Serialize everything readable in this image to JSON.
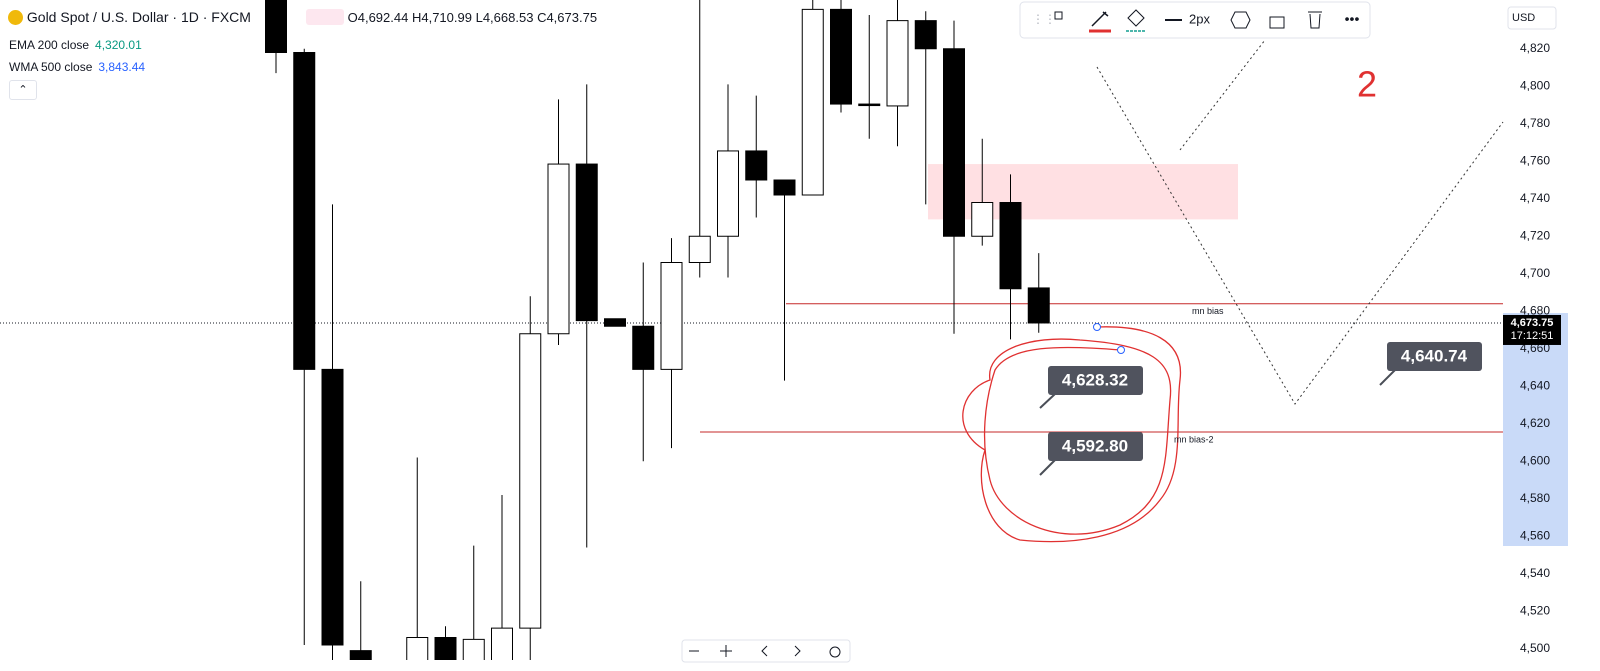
{
  "chart_data": {
    "type": "candlestick",
    "symbol": "Gold Spot / U.S. Dollar · 1D · FXCM",
    "ohlc_labels": [
      "O4,692.44",
      "H4,710.99",
      "L4,668.53",
      "C4,673.75"
    ],
    "indicators": [
      {
        "name": "EMA 200 close",
        "value": "4,320.01",
        "color": "#089981"
      },
      {
        "name": "WMA 500 close",
        "value": "3,843.44",
        "color": "#2962ff"
      }
    ],
    "currency": "USD",
    "line_width_label": "2px",
    "note": "2",
    "categories": [
      null,
      null,
      null,
      null,
      null,
      null,
      null,
      null,
      null,
      null,
      null,
      null,
      null,
      null,
      null,
      null,
      null,
      null,
      null,
      null,
      null,
      null,
      null,
      null,
      null,
      null,
      null,
      null
    ],
    "open": [
      4850,
      4818,
      4649,
      4499,
      null,
      4488,
      4506,
      4490,
      4490,
      4511,
      4668,
      4758.5,
      4676,
      4672,
      4649,
      4706,
      4720,
      4765.5,
      4750,
      4742,
      4841,
      4790.5,
      4789.5,
      4835,
      4820,
      4720,
      4738,
      4692.44
    ],
    "high": [
      4860,
      4820,
      4737,
      4536,
      null,
      4602,
      4512,
      4555,
      4582,
      4688,
      4793,
      4801,
      4676,
      4706,
      4719,
      4860,
      4801,
      4795,
      4750,
      4850,
      4850,
      4838,
      4850,
      4840,
      4835,
      4772,
      4753,
      4710.99
    ],
    "low": [
      4807,
      4502,
      4488,
      4480,
      null,
      4480,
      4480,
      4480,
      4480,
      4480,
      4662,
      4554,
      4672,
      4600,
      4607,
      4698,
      4698,
      4730,
      4643,
      4742,
      4786,
      4772,
      4768,
      4737,
      4668,
      4715,
      4665,
      4668.53
    ],
    "close": [
      4818,
      4649,
      4502,
      4488,
      null,
      4506,
      4490,
      4505,
      4511,
      4668,
      4758.5,
      4675,
      4672,
      4649,
      4706,
      4720,
      4765.5,
      4750,
      4742,
      4841,
      4790.5,
      4790,
      4835,
      4820,
      4720,
      4738,
      4692,
      4673.75
    ],
    "up_color": "#ffffff",
    "down_color": "#000000",
    "ylim": [
      4494,
      4846
    ],
    "yticks": [
      {
        "value": 4500,
        "label": "4,500"
      },
      {
        "value": 4520,
        "label": "4,520"
      },
      {
        "value": 4540,
        "label": "4,540"
      },
      {
        "value": 4560,
        "label": "4,560"
      },
      {
        "value": 4580,
        "label": "4,580"
      },
      {
        "value": 4600,
        "label": "4,600"
      },
      {
        "value": 4620,
        "label": "4,620"
      },
      {
        "value": 4640,
        "label": "4,640"
      },
      {
        "value": 4660,
        "label": "4,660"
      },
      {
        "value": 4680,
        "label": "4,680"
      },
      {
        "value": 4700,
        "label": "4,700"
      },
      {
        "value": 4720,
        "label": "4,720"
      },
      {
        "value": 4740,
        "label": "4,740"
      },
      {
        "value": 4760,
        "label": "4,760"
      },
      {
        "value": 4780,
        "label": "4,780"
      },
      {
        "value": 4800,
        "label": "4,800"
      },
      {
        "value": 4820,
        "label": "4,820"
      }
    ],
    "price_label": {
      "value": 4673.75,
      "label": "4,673.75"
    },
    "countdown": "17:12:51",
    "hlines": [
      {
        "name": "mn bias",
        "value": 4684,
        "color": "#c62828"
      },
      {
        "name": "mn bias-2",
        "value": 4615.6,
        "color": "#c62828"
      }
    ],
    "zone": [
      4729,
      4758.5
    ],
    "callouts": [
      "4,628.32",
      "4,592.80",
      "4,640.74"
    ]
  }
}
